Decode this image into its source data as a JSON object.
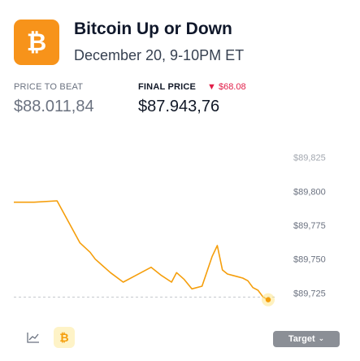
{
  "header": {
    "logo_glyph": "₿",
    "title": "Bitcoin Up or Down",
    "subtitle": "December 20, 9-10PM ET"
  },
  "prices": {
    "beat_label": "PRICE TO BEAT",
    "beat_value": "$88.011,84",
    "final_label": "FINAL PRICE",
    "delta_arrow": "▼",
    "delta_value": "$68.08",
    "final_value": "$87.943,76"
  },
  "colors": {
    "accent": "#f7931a",
    "line": "#f59e0b",
    "down": "#e11d48"
  },
  "chart_data": {
    "type": "line",
    "y_ticks": [
      "$89,825",
      "$89,800",
      "$89,775",
      "$89,750",
      "$89,725"
    ],
    "ylim": [
      89715,
      89835
    ],
    "xlim": [
      0,
      100
    ],
    "target_value": 89722,
    "series": [
      {
        "x": [
          0,
          8,
          17,
          26,
          30,
          32,
          35,
          38,
          43,
          48,
          54,
          58,
          62,
          64,
          67,
          70,
          74,
          78,
          80,
          82,
          84,
          86,
          88,
          90,
          92,
          94,
          96,
          98,
          100
        ],
        "y": [
          89792,
          89792,
          89793,
          89762,
          89755,
          89750,
          89745,
          89740,
          89733,
          89738,
          89744,
          89738,
          89733,
          89740,
          89735,
          89728,
          89730,
          89752,
          89760,
          89742,
          89739,
          89738,
          89737,
          89736,
          89734,
          89729,
          89727,
          89722,
          89720
        ]
      }
    ],
    "target_label": "Target",
    "grid": false
  },
  "toolbar": {
    "line_icon": "line-chart-icon",
    "btc_glyph": "₿",
    "target_chevron": "⌄"
  }
}
